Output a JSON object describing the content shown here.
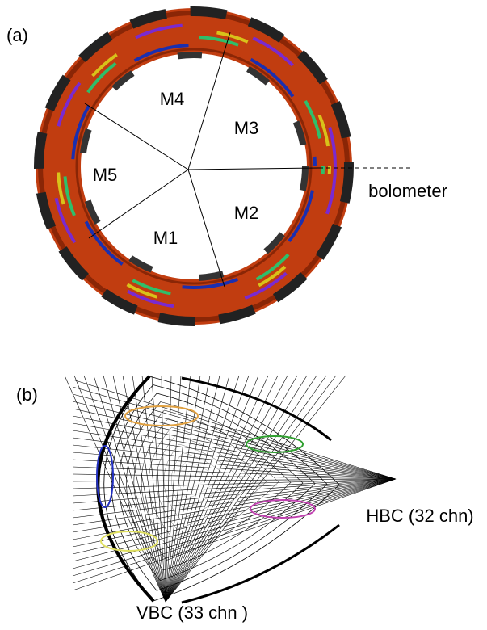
{
  "panel_a": {
    "label": "(a)",
    "regions": [
      "M1",
      "M2",
      "M3",
      "M4",
      "M5"
    ],
    "annotation": "bolometer"
  },
  "panel_b": {
    "label": "(b)",
    "hbc": "HBC (32 chn)",
    "vbc": "VBC (33 chn )"
  }
}
